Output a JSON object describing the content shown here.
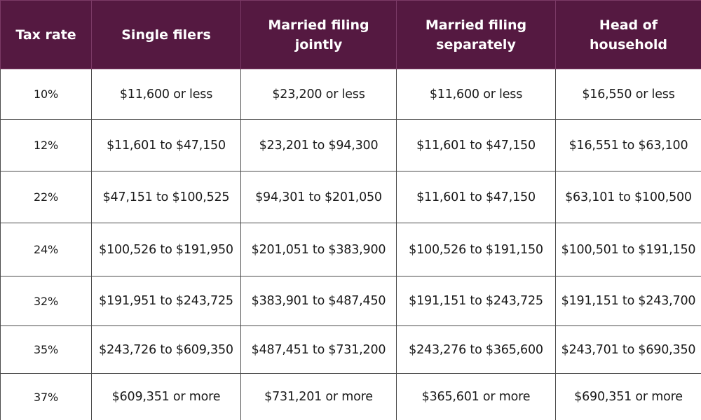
{
  "table": {
    "headers": [
      "Tax rate",
      "Single filers",
      "Married filing\njointly",
      "Married filing\nseparately",
      "Head of\nhousehold"
    ],
    "rows": [
      [
        "10%",
        "$11,600 or less",
        "$23,200 or less",
        "$11,600 or less",
        "$16,550 or less"
      ],
      [
        "12%",
        "$11,601 to $47,150",
        "$23,201 to $94,300",
        "$11,601 to $47,150",
        "$16,551 to $63,100"
      ],
      [
        "22%",
        "$47,151 to $100,525",
        "$94,301 to $201,050",
        "$11,601 to $47,150",
        "$63,101 to $100,500"
      ],
      [
        "24%",
        "$100,526 to $191,950",
        "$201,051 to $383,900",
        "$100,526 to $191,150",
        "$100,501 to $191,150"
      ],
      [
        "32%",
        "$191,951 to $243,725",
        "$383,901 to $487,450",
        "$191,151 to $243,725",
        "$191,151 to $243,700"
      ],
      [
        "35%",
        "$243,726 to $609,350",
        "$487,451 to $731,200",
        "$243,276 to $365,600",
        "$243,701 to $690,350"
      ],
      [
        "37%",
        "$609,351 or more",
        "$731,201 or more",
        "$365,601 or more",
        "$690,351 or more"
      ]
    ]
  },
  "colors": {
    "header_background": "#551941",
    "header_text": "#ffffff",
    "grid_lines": "#4a4a4a"
  }
}
